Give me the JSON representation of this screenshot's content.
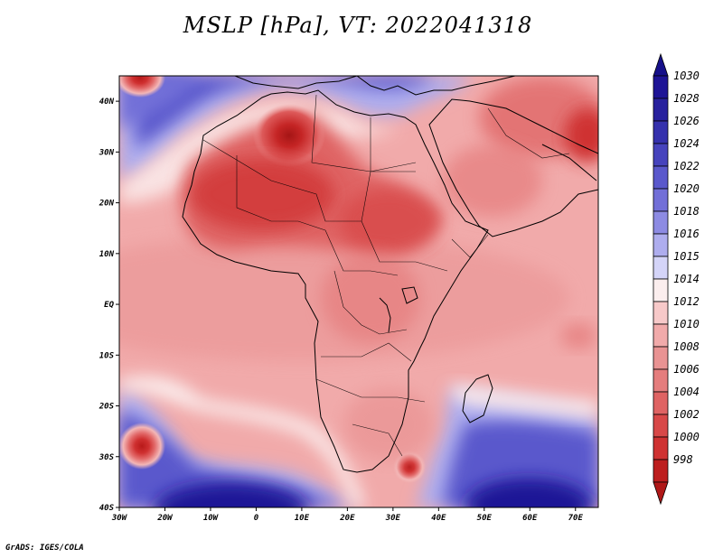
{
  "title": "MSLP [hPa], VT: 2022041318",
  "credit": "GrADS: IGES/COLA",
  "map": {
    "region": "Africa",
    "variable": "Mean sea level pressure",
    "units": "hPa",
    "lon_range": [
      -30,
      75
    ],
    "lat_range": [
      -40,
      45
    ],
    "lon_ticks": [
      {
        "value": -30,
        "label": "30W"
      },
      {
        "value": -20,
        "label": "20W"
      },
      {
        "value": -10,
        "label": "10W"
      },
      {
        "value": 0,
        "label": "0"
      },
      {
        "value": 10,
        "label": "10E"
      },
      {
        "value": 20,
        "label": "20E"
      },
      {
        "value": 30,
        "label": "30E"
      },
      {
        "value": 40,
        "label": "40E"
      },
      {
        "value": 50,
        "label": "50E"
      },
      {
        "value": 60,
        "label": "60E"
      },
      {
        "value": 70,
        "label": "70E"
      }
    ],
    "lat_ticks": [
      {
        "value": 40,
        "label": "40N"
      },
      {
        "value": 30,
        "label": "30N"
      },
      {
        "value": 20,
        "label": "20N"
      },
      {
        "value": 10,
        "label": "10N"
      },
      {
        "value": 0,
        "label": "EQ"
      },
      {
        "value": -10,
        "label": "10S"
      },
      {
        "value": -20,
        "label": "20S"
      },
      {
        "value": -30,
        "label": "30S"
      },
      {
        "value": -40,
        "label": "40S"
      }
    ]
  },
  "colorbar": {
    "levels": [
      {
        "label": "1030",
        "color": "#1e1496"
      },
      {
        "label": "1028",
        "color": "#28219e"
      },
      {
        "label": "1026",
        "color": "#3531ad"
      },
      {
        "label": "1024",
        "color": "#4643bd"
      },
      {
        "label": "1022",
        "color": "#5a58cc"
      },
      {
        "label": "1020",
        "color": "#726fd8"
      },
      {
        "label": "1018",
        "color": "#8d8be3"
      },
      {
        "label": "1016",
        "color": "#aeadee"
      },
      {
        "label": "1015",
        "color": "#d4d4f8"
      },
      {
        "label": "1014",
        "color": "#fbeeee"
      },
      {
        "label": "1012",
        "color": "#f7c9c9"
      },
      {
        "label": "1010",
        "color": "#f1aaaa"
      },
      {
        "label": "1008",
        "color": "#e99393"
      },
      {
        "label": "1006",
        "color": "#e57d7d"
      },
      {
        "label": "1004",
        "color": "#df6363"
      },
      {
        "label": "1002",
        "color": "#d84848"
      },
      {
        "label": "1000",
        "color": "#cf3232"
      },
      {
        "label": "998",
        "color": "#bd1e1e"
      }
    ],
    "top_cap_color": "#16108a",
    "bottom_cap_color": "#b01818"
  },
  "features": [
    {
      "name": "high-pressure-south-atlantic",
      "lon": -10,
      "lat": -39,
      "level": "1026"
    },
    {
      "name": "high-pressure-south-indian-ocean",
      "lon": 60,
      "lat": -39,
      "level": "1026"
    },
    {
      "name": "high-pressure-mediterranean",
      "lon": -10,
      "lat": 38,
      "level": "1020"
    },
    {
      "name": "low-sahara",
      "lon": 5,
      "lat": 27,
      "level": "1002"
    },
    {
      "name": "low-sahel",
      "lon": 0,
      "lat": 15,
      "level": "1002"
    },
    {
      "name": "low-southwest-atlantic",
      "lon": -26,
      "lat": -29,
      "level": "1004"
    },
    {
      "name": "low-mozambique",
      "lon": 33,
      "lat": -32,
      "level": "1002"
    },
    {
      "name": "low-northwest-corner",
      "lon": -27,
      "lat": 44,
      "level": "1004"
    }
  ]
}
